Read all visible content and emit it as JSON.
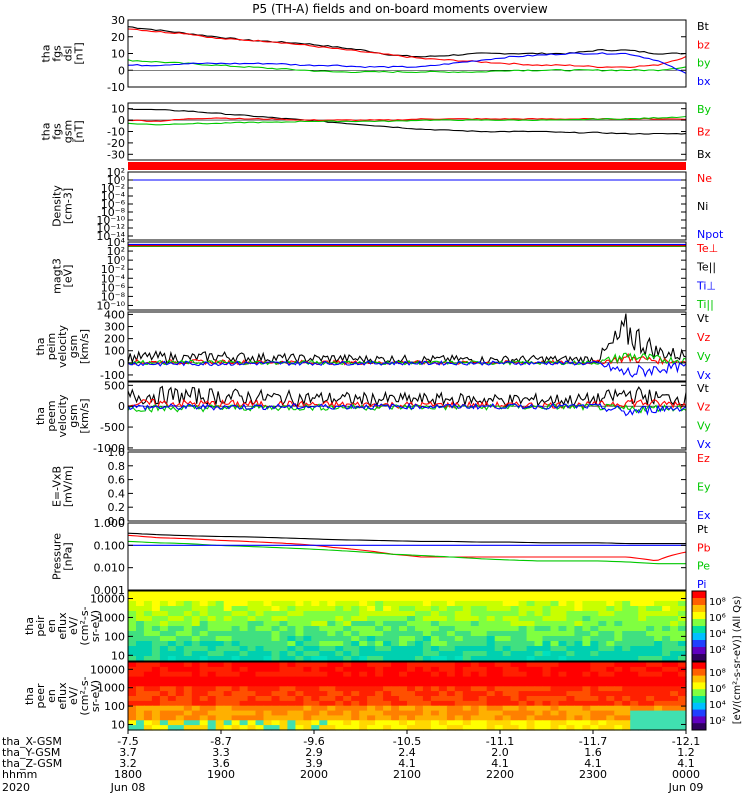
{
  "title": "P5 (TH-A) fields and on-board moments overview",
  "colors": {
    "black": "#000000",
    "red": "#ff0000",
    "green": "#00c800",
    "blue": "#0000ff"
  },
  "chart_data": [
    {
      "id": "fgs_dsl",
      "type": "line",
      "ylabel": [
        "tha",
        "fgs",
        "dsl",
        "[nT]"
      ],
      "ylim": [
        -10,
        30
      ],
      "yticks": [
        30,
        20,
        10,
        0,
        -10
      ],
      "ytick_labels": [
        "30",
        "20",
        "10",
        "0",
        "-10"
      ],
      "legend": [
        {
          "name": "Bt",
          "color": "black"
        },
        {
          "name": "bz",
          "color": "red"
        },
        {
          "name": "by",
          "color": "green"
        },
        {
          "name": "bx",
          "color": "blue"
        }
      ],
      "series": [
        {
          "name": "Bt",
          "color": "black",
          "values": [
            26,
            24,
            22,
            20,
            18,
            17,
            16,
            14,
            12,
            9,
            8,
            9,
            10,
            10,
            10,
            10,
            12,
            12,
            10,
            10
          ]
        },
        {
          "name": "bz",
          "color": "red",
          "values": [
            25,
            23,
            22,
            19,
            18,
            17,
            15,
            13,
            11,
            9,
            7,
            6,
            5,
            4,
            3,
            3,
            2,
            2,
            3,
            8
          ]
        },
        {
          "name": "by",
          "color": "green",
          "values": [
            6,
            5,
            4,
            3,
            2,
            1,
            0,
            -1,
            -1,
            -1,
            -1,
            -1,
            -1,
            0,
            0,
            0,
            0,
            0,
            0,
            2
          ]
        },
        {
          "name": "bx",
          "color": "blue",
          "values": [
            3,
            3,
            4,
            4,
            4,
            4,
            3,
            3,
            2,
            2,
            2,
            4,
            6,
            8,
            9,
            10,
            10,
            10,
            6,
            -2
          ]
        }
      ]
    },
    {
      "id": "fgs_gsm",
      "type": "line",
      "ylabel": [
        "tha",
        "fgs",
        "gsm",
        "[nT]"
      ],
      "ylim": [
        -35,
        15
      ],
      "yticks": [
        10,
        0,
        -10,
        -20,
        -30
      ],
      "ytick_labels": [
        "10",
        "0",
        "-10",
        "-20",
        "-30"
      ],
      "legend": [
        {
          "name": "By",
          "color": "green"
        },
        {
          "name": "Bz",
          "color": "red"
        },
        {
          "name": "Bx",
          "color": "black"
        }
      ],
      "series": [
        {
          "name": "Bx",
          "color": "black",
          "values": [
            10,
            9,
            8,
            6,
            4,
            2,
            0,
            -2,
            -4,
            -6,
            -8,
            -9,
            -10,
            -10,
            -10,
            -11,
            -11,
            -12,
            -12,
            -12
          ]
        },
        {
          "name": "Bz",
          "color": "red",
          "values": [
            0,
            -1,
            1,
            2,
            1,
            1,
            0,
            0,
            0,
            0,
            1,
            1,
            1,
            1,
            1,
            1,
            1,
            1,
            1,
            1
          ]
        },
        {
          "name": "By",
          "color": "green",
          "values": [
            -3,
            -4,
            -3,
            -3,
            -2,
            -2,
            -1,
            -1,
            -1,
            -1,
            0,
            0,
            0,
            0,
            0,
            0,
            1,
            1,
            2,
            3
          ]
        }
      ]
    },
    {
      "id": "density",
      "type": "line",
      "ylabel": [
        "Density",
        "[cm-3]"
      ],
      "log": true,
      "ylim": [
        1e-15,
        100.0
      ],
      "ytick_labels": [
        "10²",
        "10⁰",
        "10⁻²",
        "10⁻⁴",
        "10⁻⁶",
        "10⁻⁸",
        "10⁻¹⁰",
        "10⁻¹²",
        "10⁻¹⁴"
      ],
      "yticks": [
        100,
        1,
        0.01,
        0.0001,
        1e-06,
        1e-08,
        1e-10,
        1e-12,
        1e-14
      ],
      "legend": [
        {
          "name": "Ne",
          "color": "red"
        },
        {
          "name": "Ni",
          "color": "black"
        },
        {
          "name": "Npot",
          "color": "blue"
        }
      ],
      "series": [
        {
          "name": "Ne",
          "color": "red",
          "values": [
            1,
            1,
            1,
            1,
            1,
            1,
            1,
            1,
            1,
            1,
            1,
            1,
            1,
            1,
            1,
            1,
            1,
            1,
            1,
            1
          ]
        },
        {
          "name": "Ni",
          "color": "black",
          "values": [
            1,
            1,
            1,
            1,
            1,
            1,
            1,
            1,
            1,
            1,
            1,
            1,
            1,
            1,
            1,
            1,
            1,
            1,
            1,
            1
          ]
        },
        {
          "name": "Npot",
          "color": "blue",
          "values": [
            1,
            1,
            1,
            1,
            1,
            1,
            1,
            1,
            1,
            1,
            1,
            1,
            1,
            1,
            1,
            1,
            1,
            1,
            1,
            1
          ]
        }
      ]
    },
    {
      "id": "moms_temp",
      "type": "line",
      "ylabel": [
        "magt3",
        "[eV]"
      ],
      "log": true,
      "ylim": [
        1e-11,
        10000.0
      ],
      "ytick_labels": [
        "10⁴",
        "10²",
        "10⁰",
        "10⁻²",
        "10⁻⁴",
        "10⁻⁶",
        "10⁻⁸",
        "10⁻¹⁰"
      ],
      "yticks": [
        10000,
        100,
        1,
        0.01,
        0.0001,
        1e-06,
        1e-08,
        1e-10
      ],
      "legend": [
        {
          "name": "Te⊥",
          "color": "red"
        },
        {
          "name": "Te||",
          "color": "black"
        },
        {
          "name": "Ti⊥",
          "color": "blue"
        },
        {
          "name": "Ti||",
          "color": "green"
        }
      ],
      "series": [
        {
          "name": "Ti||",
          "color": "green",
          "values": [
            1000,
            1000,
            1000,
            1000,
            1000,
            1000,
            1000,
            1000,
            1000,
            1000,
            1000,
            1000,
            1000,
            1000,
            1000,
            1000,
            1000,
            1000,
            1000,
            1000
          ]
        },
        {
          "name": "Te||",
          "color": "black",
          "values": [
            2000,
            2000,
            2000,
            2000,
            2000,
            2000,
            2000,
            2000,
            2000,
            2000,
            2000,
            2000,
            2000,
            2000,
            2000,
            2000,
            2000,
            2000,
            2000,
            2000
          ]
        },
        {
          "name": "Ti⊥",
          "color": "blue",
          "values": [
            3000,
            3000,
            3000,
            3000,
            3000,
            3000,
            3000,
            3000,
            3000,
            3000,
            3000,
            3000,
            3000,
            3000,
            3000,
            3000,
            3000,
            3000,
            3000,
            3000
          ]
        },
        {
          "name": "Te⊥",
          "color": "red",
          "values": [
            1500,
            1500,
            1500,
            1500,
            1500,
            1500,
            1500,
            1500,
            1500,
            1500,
            1500,
            1500,
            1500,
            1500,
            1500,
            1500,
            1500,
            1500,
            1500,
            1500
          ]
        }
      ]
    },
    {
      "id": "peim_vel",
      "type": "line",
      "ylabel": [
        "tha",
        "peim",
        "velocity",
        "gsm",
        "[km/s]"
      ],
      "ylim": [
        -150,
        420
      ],
      "yticks": [
        400,
        300,
        200,
        100,
        0,
        -100
      ],
      "ytick_labels": [
        "400",
        "300",
        "200",
        "100",
        "0",
        "-100"
      ],
      "legend": [
        {
          "name": "Vt",
          "color": "black"
        },
        {
          "name": "Vz",
          "color": "red"
        },
        {
          "name": "Vy",
          "color": "green"
        },
        {
          "name": "Vx",
          "color": "blue"
        }
      ],
      "series": [
        {
          "name": "Vt",
          "color": "black",
          "values": [
            45,
            50,
            40,
            55,
            45,
            40,
            35,
            38,
            30,
            32,
            28,
            30,
            25,
            28,
            30,
            28,
            32,
            260,
            90,
            60
          ]
        },
        {
          "name": "Vz",
          "color": "red",
          "values": [
            10,
            5,
            8,
            6,
            5,
            5,
            4,
            3,
            3,
            2,
            2,
            2,
            2,
            2,
            3,
            2,
            5,
            40,
            20,
            10
          ]
        },
        {
          "name": "Vy",
          "color": "green",
          "values": [
            5,
            3,
            4,
            3,
            2,
            2,
            2,
            2,
            1,
            1,
            1,
            1,
            1,
            1,
            2,
            1,
            2,
            60,
            30,
            20
          ]
        },
        {
          "name": "Vx",
          "color": "blue",
          "values": [
            -5,
            -8,
            -6,
            -5,
            -4,
            -4,
            -3,
            -3,
            -2,
            -2,
            -2,
            -2,
            -2,
            -2,
            -2,
            -2,
            -5,
            -90,
            -50,
            -30
          ]
        }
      ]
    },
    {
      "id": "peem_vel",
      "type": "line",
      "ylabel": [
        "tha",
        "peem",
        "velocity",
        "gsm",
        "[km/s]"
      ],
      "ylim": [
        -1050,
        580
      ],
      "yticks": [
        500,
        0,
        -500,
        -1000
      ],
      "ytick_labels": [
        "500",
        "0",
        "-500",
        "-1000"
      ],
      "legend": [
        {
          "name": "Vt",
          "color": "black"
        },
        {
          "name": "Vz",
          "color": "red"
        },
        {
          "name": "Vy",
          "color": "green"
        },
        {
          "name": "Vx",
          "color": "blue"
        }
      ],
      "series": [
        {
          "name": "Vt",
          "color": "black",
          "values": [
            230,
            260,
            250,
            240,
            220,
            200,
            190,
            180,
            170,
            165,
            160,
            160,
            155,
            150,
            150,
            150,
            160,
            300,
            200,
            180
          ]
        },
        {
          "name": "Vz",
          "color": "red",
          "values": [
            60,
            70,
            60,
            55,
            50,
            45,
            40,
            35,
            35,
            30,
            30,
            30,
            28,
            25,
            25,
            25,
            30,
            100,
            60,
            50
          ]
        },
        {
          "name": "Vy",
          "color": "green",
          "values": [
            -40,
            -50,
            -45,
            -40,
            -35,
            -30,
            -28,
            -25,
            -25,
            -22,
            -20,
            -20,
            -20,
            -18,
            -18,
            -18,
            -20,
            -80,
            -40,
            -35
          ]
        },
        {
          "name": "Vx",
          "color": "blue",
          "values": [
            -20,
            -25,
            -20,
            -18,
            -15,
            -12,
            -10,
            -8,
            -8,
            -6,
            -6,
            -6,
            -5,
            -5,
            -5,
            -5,
            -8,
            -150,
            -60,
            -40
          ]
        }
      ]
    },
    {
      "id": "efs",
      "type": "line",
      "ylabel": [
        "E=-VxB",
        "[mV/m]"
      ],
      "ylim": [
        0,
        1
      ],
      "yticks": [
        1.0,
        0.8,
        0.6,
        0.4,
        0.2,
        0.0
      ],
      "ytick_labels": [
        "1.0",
        "0.8",
        "0.6",
        "0.4",
        "0.2",
        "0.0"
      ],
      "legend": [
        {
          "name": "Ez",
          "color": "red"
        },
        {
          "name": "Ey",
          "color": "green"
        },
        {
          "name": "Ex",
          "color": "blue"
        }
      ],
      "series": []
    },
    {
      "id": "pressure",
      "type": "line",
      "ylabel": [
        "Pressure",
        "[nPa]"
      ],
      "log": true,
      "ylim": [
        0.001,
        1
      ],
      "yticks": [
        1,
        0.1,
        0.01,
        0.001
      ],
      "ytick_labels": [
        "1.000",
        "0.100",
        "0.010",
        "0.001"
      ],
      "legend": [
        {
          "name": "Pt",
          "color": "black"
        },
        {
          "name": "Pb",
          "color": "red"
        },
        {
          "name": "Pe",
          "color": "green"
        },
        {
          "name": "Pi",
          "color": "blue"
        }
      ],
      "series": [
        {
          "name": "Pt",
          "color": "black",
          "values": [
            0.35,
            0.3,
            0.27,
            0.25,
            0.24,
            0.22,
            0.2,
            0.18,
            0.17,
            0.16,
            0.15,
            0.15,
            0.14,
            0.14,
            0.13,
            0.13,
            0.13,
            0.12,
            0.12,
            0.12
          ]
        },
        {
          "name": "Pb",
          "color": "red",
          "values": [
            0.28,
            0.22,
            0.2,
            0.17,
            0.15,
            0.13,
            0.11,
            0.08,
            0.06,
            0.04,
            0.03,
            0.03,
            0.03,
            0.03,
            0.03,
            0.03,
            0.03,
            0.03,
            0.02,
            0.05
          ]
        },
        {
          "name": "Pe",
          "color": "green",
          "values": [
            0.15,
            0.13,
            0.12,
            0.1,
            0.09,
            0.08,
            0.07,
            0.06,
            0.05,
            0.04,
            0.035,
            0.03,
            0.025,
            0.022,
            0.02,
            0.02,
            0.02,
            0.018,
            0.015,
            0.015
          ]
        },
        {
          "name": "Pi",
          "color": "blue",
          "values": [
            0.1,
            0.1,
            0.1,
            0.1,
            0.1,
            0.1,
            0.1,
            0.1,
            0.1,
            0.1,
            0.1,
            0.1,
            0.1,
            0.1,
            0.1,
            0.1,
            0.1,
            0.1,
            0.1,
            0.1
          ]
        }
      ]
    },
    {
      "id": "peir_spec",
      "type": "heatmap",
      "ylabel": [
        "tha",
        "peir",
        "en",
        "eflux",
        "eV/",
        "(cm²-s-",
        "sr-eV)"
      ],
      "log": true,
      "ylim": [
        5,
        25000
      ],
      "yticks": [
        10000,
        1000,
        100,
        10
      ],
      "ytick_labels": [
        "10000",
        "1000",
        "100",
        "10"
      ]
    },
    {
      "id": "peer_spec",
      "type": "heatmap",
      "ylabel": [
        "tha",
        "peer",
        "en",
        "eflux",
        "eV/",
        "(cm²-s-",
        "sr-eV)"
      ],
      "log": true,
      "ylim": [
        5,
        25000
      ],
      "yticks": [
        10000,
        1000,
        100,
        10
      ],
      "ytick_labels": [
        "10000",
        "1000",
        "100",
        "10"
      ]
    }
  ],
  "colorbar": {
    "label": "[eV/(cm²-s-sr-eV)] (All Qs)",
    "upper_ticks": [
      "10⁸",
      "10⁶",
      "10⁴",
      "10²"
    ],
    "lower_ticks": [
      "10⁸",
      "10⁶",
      "10⁴",
      "10²"
    ]
  },
  "x_axis": {
    "row_labels": [
      "tha_X-GSM",
      "tha_Y-GSM",
      "tha_Z-GSM",
      "hhmm",
      "2020"
    ],
    "ticks": [
      {
        "x": [
          "-7.5",
          "3.7",
          "3.2",
          "1800",
          "Jun 08"
        ]
      },
      {
        "x": [
          "-8.7",
          "3.3",
          "3.6",
          "1900",
          ""
        ]
      },
      {
        "x": [
          "-9.6",
          "2.9",
          "3.9",
          "2000",
          ""
        ]
      },
      {
        "x": [
          "-10.5",
          "2.4",
          "4.1",
          "2100",
          ""
        ]
      },
      {
        "x": [
          "-11.1",
          "2.0",
          "4.1",
          "2200",
          ""
        ]
      },
      {
        "x": [
          "-11.7",
          "1.6",
          "4.1",
          "2300",
          ""
        ]
      },
      {
        "x": [
          "-12.1",
          "1.2",
          "4.1",
          "0000",
          "Jun 09"
        ]
      }
    ]
  }
}
